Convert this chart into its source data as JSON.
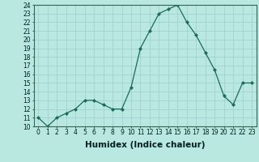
{
  "x": [
    0,
    1,
    2,
    3,
    4,
    5,
    6,
    7,
    8,
    9,
    10,
    11,
    12,
    13,
    14,
    15,
    16,
    17,
    18,
    19,
    20,
    21,
    22,
    23
  ],
  "y": [
    11.0,
    10.0,
    11.0,
    11.5,
    12.0,
    13.0,
    13.0,
    12.5,
    12.0,
    12.0,
    14.5,
    19.0,
    21.0,
    23.0,
    23.5,
    24.0,
    22.0,
    20.5,
    18.5,
    16.5,
    13.5,
    12.5,
    15.0,
    15.0
  ],
  "line_color": "#1a6b5a",
  "marker": "D",
  "marker_size": 2.0,
  "bg_color": "#b8e8e0",
  "grid_color": "#9ecece",
  "xlabel": "Humidex (Indice chaleur)",
  "ylim": [
    10,
    24
  ],
  "xlim": [
    -0.5,
    23.5
  ],
  "yticks": [
    10,
    11,
    12,
    13,
    14,
    15,
    16,
    17,
    18,
    19,
    20,
    21,
    22,
    23,
    24
  ],
  "xticks": [
    0,
    1,
    2,
    3,
    4,
    5,
    6,
    7,
    8,
    9,
    10,
    11,
    12,
    13,
    14,
    15,
    16,
    17,
    18,
    19,
    20,
    21,
    22,
    23
  ],
  "tick_fontsize": 5.5,
  "xlabel_fontsize": 7.5
}
